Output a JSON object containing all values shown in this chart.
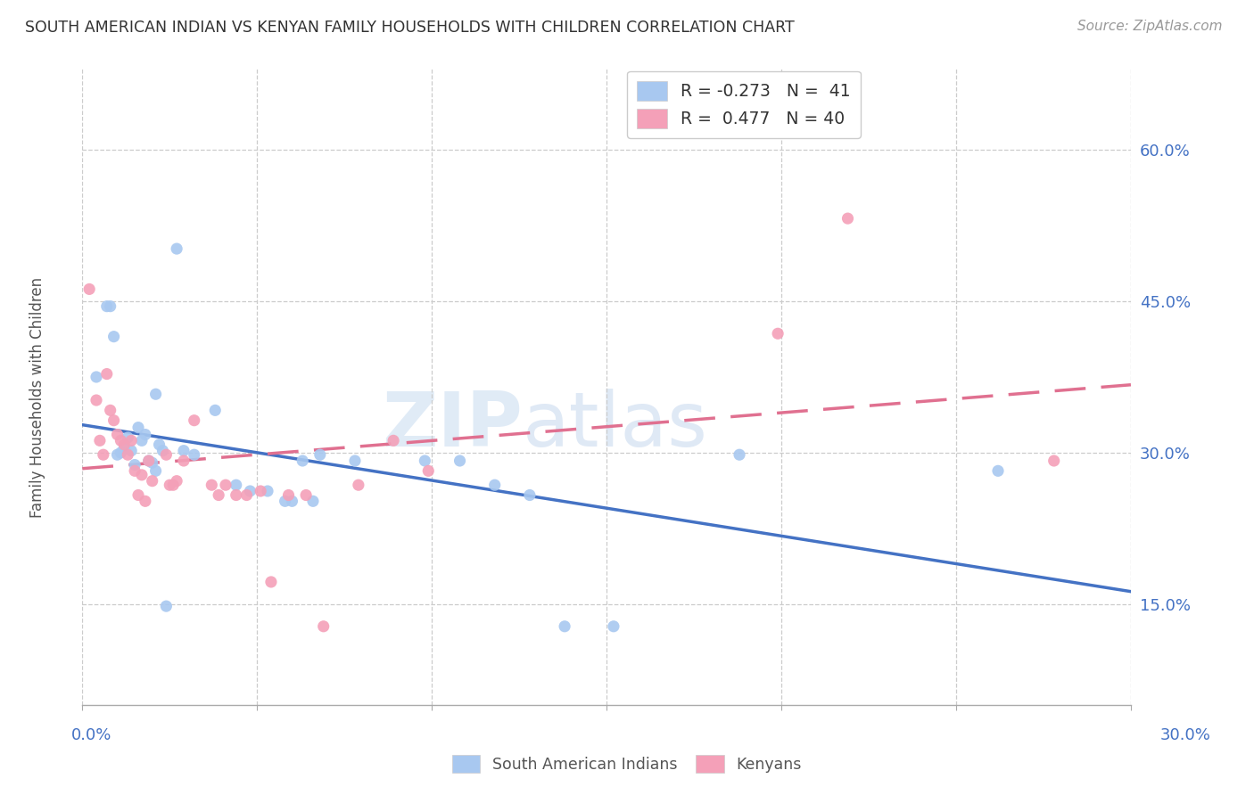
{
  "title": "SOUTH AMERICAN INDIAN VS KENYAN FAMILY HOUSEHOLDS WITH CHILDREN CORRELATION CHART",
  "source": "Source: ZipAtlas.com",
  "ylabel": "Family Households with Children",
  "ytick_labels": [
    "15.0%",
    "30.0%",
    "45.0%",
    "60.0%"
  ],
  "ytick_values": [
    0.15,
    0.3,
    0.45,
    0.6
  ],
  "xlim": [
    0.0,
    0.3
  ],
  "ylim": [
    0.05,
    0.68
  ],
  "blue_color": "#A8C8F0",
  "pink_color": "#F4A0B8",
  "blue_line_color": "#4472C4",
  "pink_line_color": "#E07090",
  "watermark_zip": "ZIP",
  "watermark_atlas": "atlas",
  "south_american_indians": [
    [
      0.004,
      0.375
    ],
    [
      0.007,
      0.445
    ],
    [
      0.008,
      0.445
    ],
    [
      0.009,
      0.415
    ],
    [
      0.01,
      0.298
    ],
    [
      0.011,
      0.3
    ],
    [
      0.012,
      0.305
    ],
    [
      0.013,
      0.315
    ],
    [
      0.014,
      0.302
    ],
    [
      0.015,
      0.288
    ],
    [
      0.016,
      0.325
    ],
    [
      0.017,
      0.312
    ],
    [
      0.018,
      0.318
    ],
    [
      0.019,
      0.292
    ],
    [
      0.02,
      0.29
    ],
    [
      0.021,
      0.282
    ],
    [
      0.021,
      0.358
    ],
    [
      0.022,
      0.308
    ],
    [
      0.023,
      0.302
    ],
    [
      0.024,
      0.148
    ],
    [
      0.027,
      0.502
    ],
    [
      0.029,
      0.302
    ],
    [
      0.032,
      0.298
    ],
    [
      0.038,
      0.342
    ],
    [
      0.044,
      0.268
    ],
    [
      0.048,
      0.262
    ],
    [
      0.053,
      0.262
    ],
    [
      0.058,
      0.252
    ],
    [
      0.06,
      0.252
    ],
    [
      0.063,
      0.292
    ],
    [
      0.066,
      0.252
    ],
    [
      0.068,
      0.298
    ],
    [
      0.078,
      0.292
    ],
    [
      0.098,
      0.292
    ],
    [
      0.108,
      0.292
    ],
    [
      0.118,
      0.268
    ],
    [
      0.128,
      0.258
    ],
    [
      0.138,
      0.128
    ],
    [
      0.152,
      0.128
    ],
    [
      0.188,
      0.298
    ],
    [
      0.262,
      0.282
    ]
  ],
  "kenyans": [
    [
      0.002,
      0.462
    ],
    [
      0.004,
      0.352
    ],
    [
      0.005,
      0.312
    ],
    [
      0.006,
      0.298
    ],
    [
      0.007,
      0.378
    ],
    [
      0.008,
      0.342
    ],
    [
      0.009,
      0.332
    ],
    [
      0.01,
      0.318
    ],
    [
      0.011,
      0.312
    ],
    [
      0.012,
      0.308
    ],
    [
      0.013,
      0.298
    ],
    [
      0.014,
      0.312
    ],
    [
      0.015,
      0.282
    ],
    [
      0.016,
      0.258
    ],
    [
      0.017,
      0.278
    ],
    [
      0.018,
      0.252
    ],
    [
      0.019,
      0.292
    ],
    [
      0.02,
      0.272
    ],
    [
      0.024,
      0.298
    ],
    [
      0.025,
      0.268
    ],
    [
      0.026,
      0.268
    ],
    [
      0.027,
      0.272
    ],
    [
      0.029,
      0.292
    ],
    [
      0.032,
      0.332
    ],
    [
      0.037,
      0.268
    ],
    [
      0.039,
      0.258
    ],
    [
      0.041,
      0.268
    ],
    [
      0.044,
      0.258
    ],
    [
      0.047,
      0.258
    ],
    [
      0.051,
      0.262
    ],
    [
      0.054,
      0.172
    ],
    [
      0.059,
      0.258
    ],
    [
      0.064,
      0.258
    ],
    [
      0.069,
      0.128
    ],
    [
      0.079,
      0.268
    ],
    [
      0.089,
      0.312
    ],
    [
      0.099,
      0.282
    ],
    [
      0.199,
      0.418
    ],
    [
      0.219,
      0.532
    ],
    [
      0.278,
      0.292
    ]
  ]
}
